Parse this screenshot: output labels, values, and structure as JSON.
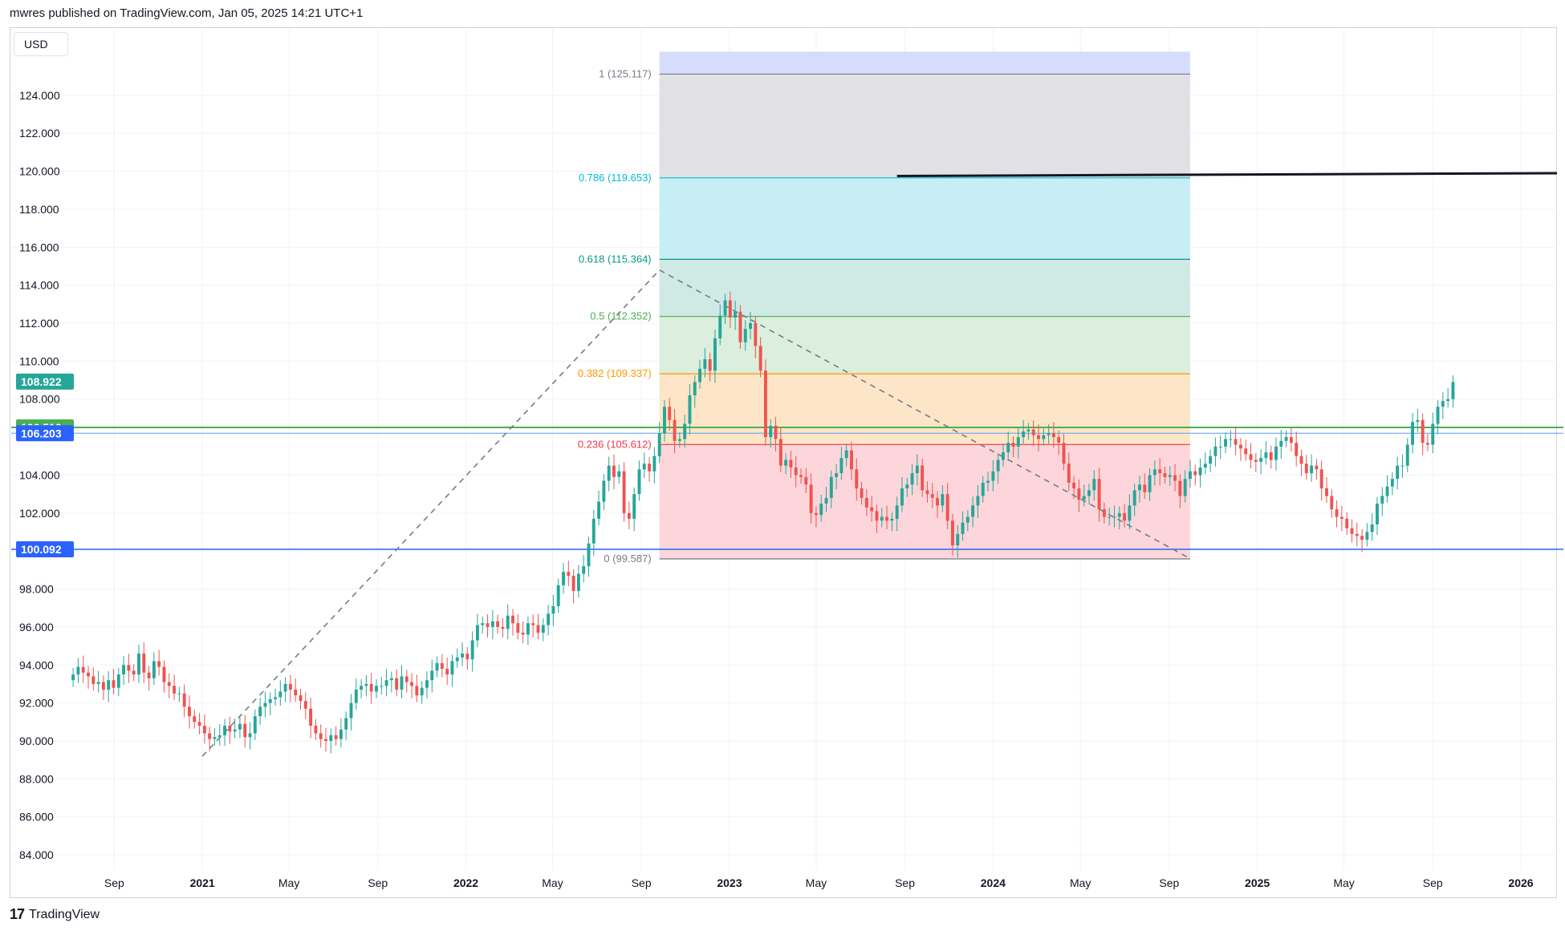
{
  "header": {
    "attribution": "mwres published on TradingView.com, Jan 05, 2025 14:21 UTC+1"
  },
  "footer": {
    "brand": "TradingView",
    "logo_text": "17"
  },
  "currency": "USD",
  "colors": {
    "up": "#26a69a",
    "down": "#ef5350",
    "grid": "#f0f3fa",
    "axis_text": "#131722",
    "hline_green": "#4caf50",
    "hline_blue": "#2962ff",
    "hline_lightblue": "#5b9cf6",
    "last_price_bg": "#26a69a"
  },
  "chart_data": {
    "type": "candlestick",
    "title": "",
    "xlabel": "",
    "ylabel": "",
    "ylim": [
      83.2,
      127.5
    ],
    "y_ticks": [
      "84.000",
      "86.000",
      "88.000",
      "90.000",
      "92.000",
      "94.000",
      "96.000",
      "98.000",
      "100.000",
      "102.000",
      "104.000",
      "106.000",
      "108.000",
      "110.000",
      "112.000",
      "114.000",
      "116.000",
      "118.000",
      "120.000",
      "122.000",
      "124.000"
    ],
    "x_ticks": [
      {
        "label": "Sep",
        "date": "2020-09-01",
        "bold": false
      },
      {
        "label": "2021",
        "date": "2021-01-01",
        "bold": true
      },
      {
        "label": "May",
        "date": "2021-05-01",
        "bold": false
      },
      {
        "label": "Sep",
        "date": "2021-09-01",
        "bold": false
      },
      {
        "label": "2022",
        "date": "2022-01-01",
        "bold": true
      },
      {
        "label": "May",
        "date": "2022-05-01",
        "bold": false
      },
      {
        "label": "Sep",
        "date": "2022-09-01",
        "bold": false
      },
      {
        "label": "2023",
        "date": "2023-01-01",
        "bold": true
      },
      {
        "label": "May",
        "date": "2023-05-01",
        "bold": false
      },
      {
        "label": "Sep",
        "date": "2023-09-01",
        "bold": false
      },
      {
        "label": "2024",
        "date": "2024-01-01",
        "bold": true
      },
      {
        "label": "May",
        "date": "2024-05-01",
        "bold": false
      },
      {
        "label": "Sep",
        "date": "2024-09-01",
        "bold": false
      },
      {
        "label": "2025",
        "date": "2025-01-01",
        "bold": true
      },
      {
        "label": "May",
        "date": "2025-05-01",
        "bold": false
      },
      {
        "label": "Sep",
        "date": "2025-09-01",
        "bold": false
      },
      {
        "label": "2026",
        "date": "2026-01-01",
        "bold": true
      }
    ],
    "x_range": [
      "2020-07-07",
      "2026-02-20"
    ],
    "price_labels": [
      {
        "value": 108.922,
        "label": "108.922",
        "bg": "#26a69a"
      },
      {
        "value": 106.51,
        "label": "106.510",
        "bg": "#4caf50"
      },
      {
        "value": 106.203,
        "label": "106.203",
        "bg": "#2962ff"
      },
      {
        "value": 100.092,
        "label": "100.092",
        "bg": "#2962ff"
      }
    ],
    "horizontal_lines": [
      {
        "value": 106.51,
        "color": "#4caf50",
        "width": 2
      },
      {
        "value": 106.203,
        "color": "#5b9cf6",
        "width": 1
      },
      {
        "value": 100.092,
        "color": "#2962ff",
        "width": 1.5
      }
    ],
    "fib_retracement": {
      "start_date": "2022-09-26",
      "end_date": "2024-09-30",
      "levels": [
        {
          "ratio": "1",
          "value": 125.117,
          "label": "1 (125.117)",
          "color": "#787b86",
          "fill": "#e0e0e5"
        },
        {
          "ratio": "0.786",
          "value": 119.653,
          "label": "0.786 (119.653)",
          "color": "#00bcd4",
          "fill": "#c8eef5"
        },
        {
          "ratio": "0.618",
          "value": 115.364,
          "label": "0.618 (115.364)",
          "color": "#089981",
          "fill": "#cfe9e4"
        },
        {
          "ratio": "0.5",
          "value": 112.352,
          "label": "0.5 (112.352)",
          "color": "#4caf50",
          "fill": "#dceedd"
        },
        {
          "ratio": "0.382",
          "value": 109.337,
          "label": "0.382 (109.337)",
          "color": "#ff9800",
          "fill": "#fde5c8"
        },
        {
          "ratio": "0.236",
          "value": 105.612,
          "label": "0.236 (105.612)",
          "color": "#f23645",
          "fill": "#fcd6da"
        },
        {
          "ratio": "0",
          "value": 99.587,
          "label": "0 (99.587)",
          "color": "#787b86",
          "fill": null
        }
      ],
      "top_band_fill": "#d6dcfb",
      "top_band_value": 126.3
    },
    "trend_lines": [
      {
        "x1": "2021-01-01",
        "y1": 89.2,
        "x2": "2022-09-26",
        "y2": 114.8,
        "style": "dashed",
        "color": "#787b86"
      },
      {
        "x1": "2022-09-26",
        "y1": 114.8,
        "x2": "2024-09-30",
        "y2": 99.6,
        "style": "dashed",
        "color": "#787b86"
      },
      {
        "x1": "2023-08-21",
        "y1": 119.75,
        "x2": "2026-02-20",
        "y2": 119.9,
        "style": "solid",
        "color": "#131722",
        "width": 3
      }
    ],
    "weekly_close": [
      93.5,
      93.9,
      93.6,
      93.4,
      93.0,
      93.1,
      92.7,
      93.2,
      92.8,
      93.5,
      94.0,
      93.7,
      93.5,
      94.6,
      93.6,
      93.3,
      94.2,
      93.9,
      93.1,
      92.9,
      92.5,
      92.5,
      91.8,
      91.3,
      91.0,
      90.8,
      90.4,
      90.1,
      90.2,
      90.3,
      90.8,
      90.5,
      90.6,
      90.9,
      90.2,
      90.4,
      91.3,
      91.8,
      92.0,
      92.2,
      92.3,
      92.6,
      93.0,
      92.7,
      92.4,
      92.1,
      91.7,
      90.8,
      90.4,
      90.1,
      90.0,
      90.3,
      90.1,
      90.6,
      91.2,
      92.0,
      92.7,
      92.9,
      93.0,
      92.6,
      92.9,
      92.9,
      93.2,
      93.3,
      92.7,
      93.4,
      93.1,
      92.9,
      92.4,
      92.8,
      93.2,
      93.7,
      94.1,
      93.8,
      93.5,
      94.2,
      94.4,
      94.6,
      94.3,
      95.3,
      96.1,
      96.2,
      96.0,
      96.3,
      96.0,
      95.9,
      96.6,
      96.2,
      95.7,
      95.6,
      96.2,
      96.1,
      95.7,
      96.1,
      96.7,
      97.1,
      98.2,
      98.9,
      98.7,
      97.9,
      98.8,
      99.2,
      100.4,
      101.7,
      102.6,
      103.7,
      104.5,
      103.9,
      104.2,
      102.0,
      101.7,
      103.0,
      104.3,
      104.6,
      104.2,
      105.0,
      106.2,
      107.6,
      106.9,
      105.8,
      105.9,
      106.7,
      108.2,
      108.9,
      109.6,
      110.1,
      109.5,
      111.2,
      112.4,
      113.2,
      112.3,
      112.6,
      111.0,
      111.7,
      112.0,
      110.8,
      109.5,
      106.0,
      106.6,
      105.9,
      104.5,
      104.8,
      104.4,
      104.0,
      103.9,
      103.5,
      102.0,
      101.9,
      102.5,
      102.8,
      103.9,
      104.1,
      104.9,
      105.3,
      104.3,
      103.3,
      102.8,
      102.3,
      102.1,
      101.6,
      101.8,
      101.6,
      101.7,
      102.4,
      103.3,
      103.5,
      104.1,
      104.5,
      103.2,
      103.0,
      102.8,
      102.4,
      103.0,
      101.6,
      100.3,
      100.9,
      101.5,
      101.8,
      102.4,
      102.9,
      103.6,
      103.7,
      104.2,
      104.8,
      105.2,
      105.7,
      105.5,
      106.0,
      106.3,
      106.4,
      106.1,
      105.9,
      106.1,
      106.2,
      106.0,
      105.7,
      104.6,
      103.6,
      103.3,
      102.7,
      102.9,
      103.2,
      103.8,
      102.2,
      101.8,
      101.8,
      101.8,
      102.0,
      101.6,
      102.4,
      103.2,
      103.5,
      103.1,
      104.0,
      104.3,
      104.1,
      103.9,
      104.0,
      103.7,
      102.9,
      103.8,
      104.2,
      104.0,
      104.4,
      104.6,
      105.0,
      105.5,
      105.5,
      105.9,
      105.9,
      105.6,
      105.4,
      105.1,
      104.8,
      104.7,
      104.9,
      105.2,
      104.8,
      105.5,
      105.8,
      106.0,
      105.7,
      105.0,
      104.6,
      104.1,
      104.5,
      104.3,
      103.3,
      102.9,
      102.2,
      101.8,
      101.7,
      101.2,
      100.9,
      100.8,
      100.6,
      101.0,
      101.4,
      102.5,
      102.9,
      103.4,
      103.8,
      104.5,
      104.5,
      105.6,
      106.8,
      106.9,
      105.7,
      105.6,
      106.7,
      107.6,
      107.9,
      108.0,
      108.9
    ],
    "weekly_start": "2020-07-06",
    "note": "Weekly candles; opens equal prior close; highs/lows approximated from wicks"
  }
}
